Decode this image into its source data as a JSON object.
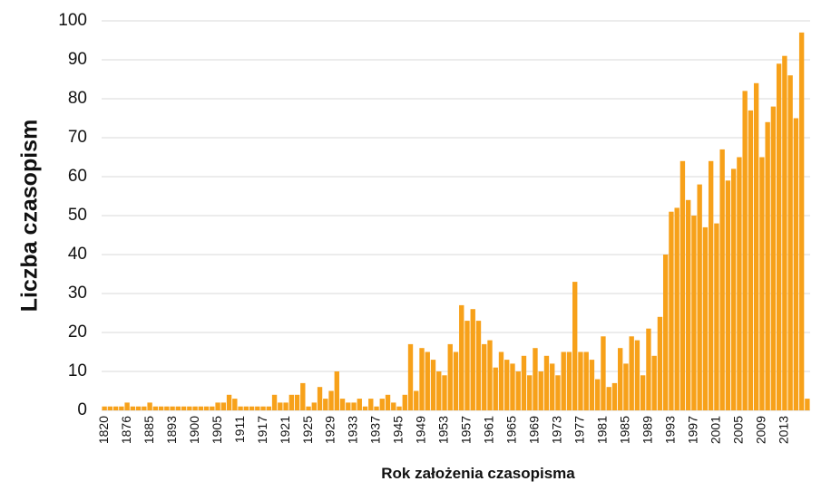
{
  "chart_data": {
    "type": "bar",
    "ylabel": "Liczba czasopism",
    "xlabel": "Rok założenia czasopisma",
    "categories": [
      "1820",
      null,
      null,
      null,
      "1876",
      null,
      null,
      null,
      "1885",
      null,
      null,
      null,
      "1893",
      null,
      null,
      null,
      "1900",
      null,
      null,
      null,
      "1905",
      null,
      null,
      null,
      "1911",
      null,
      null,
      null,
      "1917",
      null,
      null,
      null,
      "1921",
      null,
      null,
      null,
      "1925",
      null,
      null,
      null,
      "1929",
      null,
      null,
      null,
      "1933",
      null,
      null,
      null,
      "1937",
      null,
      null,
      null,
      "1945",
      null,
      null,
      null,
      "1949",
      null,
      null,
      null,
      "1953",
      null,
      null,
      null,
      "1957",
      null,
      null,
      null,
      "1961",
      null,
      null,
      null,
      "1965",
      null,
      null,
      null,
      "1969",
      null,
      null,
      null,
      "1973",
      null,
      null,
      null,
      "1977",
      null,
      null,
      null,
      "1981",
      null,
      null,
      null,
      "1985",
      null,
      null,
      null,
      "1989",
      null,
      null,
      null,
      "1993",
      null,
      null,
      null,
      "1997",
      null,
      null,
      null,
      "2001",
      null,
      null,
      null,
      "2005",
      null,
      null,
      null,
      "2009",
      null,
      null,
      null,
      "2013",
      null,
      null,
      null,
      null
    ],
    "values": [
      1,
      1,
      1,
      1,
      2,
      1,
      1,
      1,
      2,
      1,
      1,
      1,
      1,
      1,
      1,
      1,
      1,
      1,
      1,
      1,
      2,
      2,
      4,
      3,
      1,
      1,
      1,
      1,
      1,
      1,
      4,
      2,
      2,
      4,
      4,
      7,
      1,
      2,
      6,
      3,
      5,
      10,
      3,
      2,
      2,
      3,
      1,
      3,
      1,
      3,
      4,
      2,
      1,
      4,
      17,
      5,
      16,
      15,
      13,
      10,
      9,
      17,
      15,
      27,
      23,
      26,
      23,
      17,
      18,
      11,
      15,
      13,
      12,
      10,
      14,
      9,
      16,
      10,
      14,
      12,
      9,
      15,
      15,
      33,
      15,
      15,
      13,
      8,
      19,
      6,
      7,
      16,
      12,
      19,
      18,
      9,
      21,
      14,
      24,
      40,
      51,
      52,
      64,
      54,
      50,
      58,
      47,
      64,
      48,
      67,
      59,
      62,
      65,
      82,
      77,
      84,
      65,
      74,
      78,
      89,
      91,
      86,
      75,
      97,
      3
    ],
    "color": "#f7a11a",
    "ylim": [
      0,
      100
    ],
    "yticks": [
      0,
      10,
      20,
      30,
      40,
      50,
      60,
      70,
      80,
      90,
      100
    ],
    "grid": true
  }
}
